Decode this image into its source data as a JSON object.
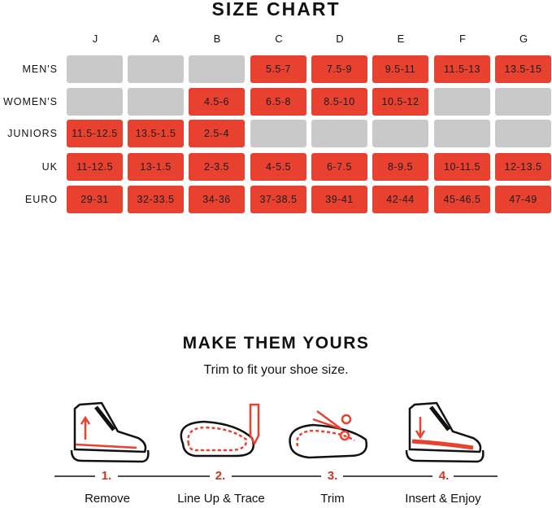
{
  "size_chart": {
    "title": "SIZE CHART",
    "columns": [
      "J",
      "A",
      "B",
      "C",
      "D",
      "E",
      "F",
      "G"
    ],
    "rows": [
      {
        "label": "MEN'S",
        "cells": [
          "",
          "",
          "",
          "5.5-7",
          "7.5-9",
          "9.5-11",
          "11.5-13",
          "13.5-15"
        ]
      },
      {
        "label": "WOMEN'S",
        "cells": [
          "",
          "",
          "4.5-6",
          "6.5-8",
          "8.5-10",
          "10.5-12",
          "",
          ""
        ]
      },
      {
        "label": "JUNIORS",
        "cells": [
          "11.5-12.5",
          "13.5-1.5",
          "2.5-4",
          "",
          "",
          "",
          "",
          ""
        ]
      },
      {
        "label": "UK",
        "cells": [
          "11-12.5",
          "13-1.5",
          "2-3.5",
          "4-5.5",
          "6-7.5",
          "8-9.5",
          "10-11.5",
          "12-13.5"
        ]
      },
      {
        "label": "EURO",
        "cells": [
          "29-31",
          "32-33.5",
          "34-36",
          "37-38.5",
          "39-41",
          "42-44",
          "45-46.5",
          "47-49"
        ]
      }
    ]
  },
  "instructions": {
    "title": "MAKE THEM YOURS",
    "subtitle": "Trim to fit your shoe size.",
    "steps": [
      {
        "number": "1.",
        "label": "Remove",
        "icon": "boot-remove-insole-icon"
      },
      {
        "number": "2.",
        "label": "Line Up & Trace",
        "icon": "insole-trace-pencil-icon"
      },
      {
        "number": "3.",
        "label": "Trim",
        "icon": "insole-scissors-icon"
      },
      {
        "number": "4.",
        "label": "Insert & Enjoy",
        "icon": "boot-insert-insole-icon"
      }
    ]
  },
  "colors": {
    "available": "#e8412f",
    "unavailable": "#c9c9c9",
    "accent": "#c7392b"
  }
}
